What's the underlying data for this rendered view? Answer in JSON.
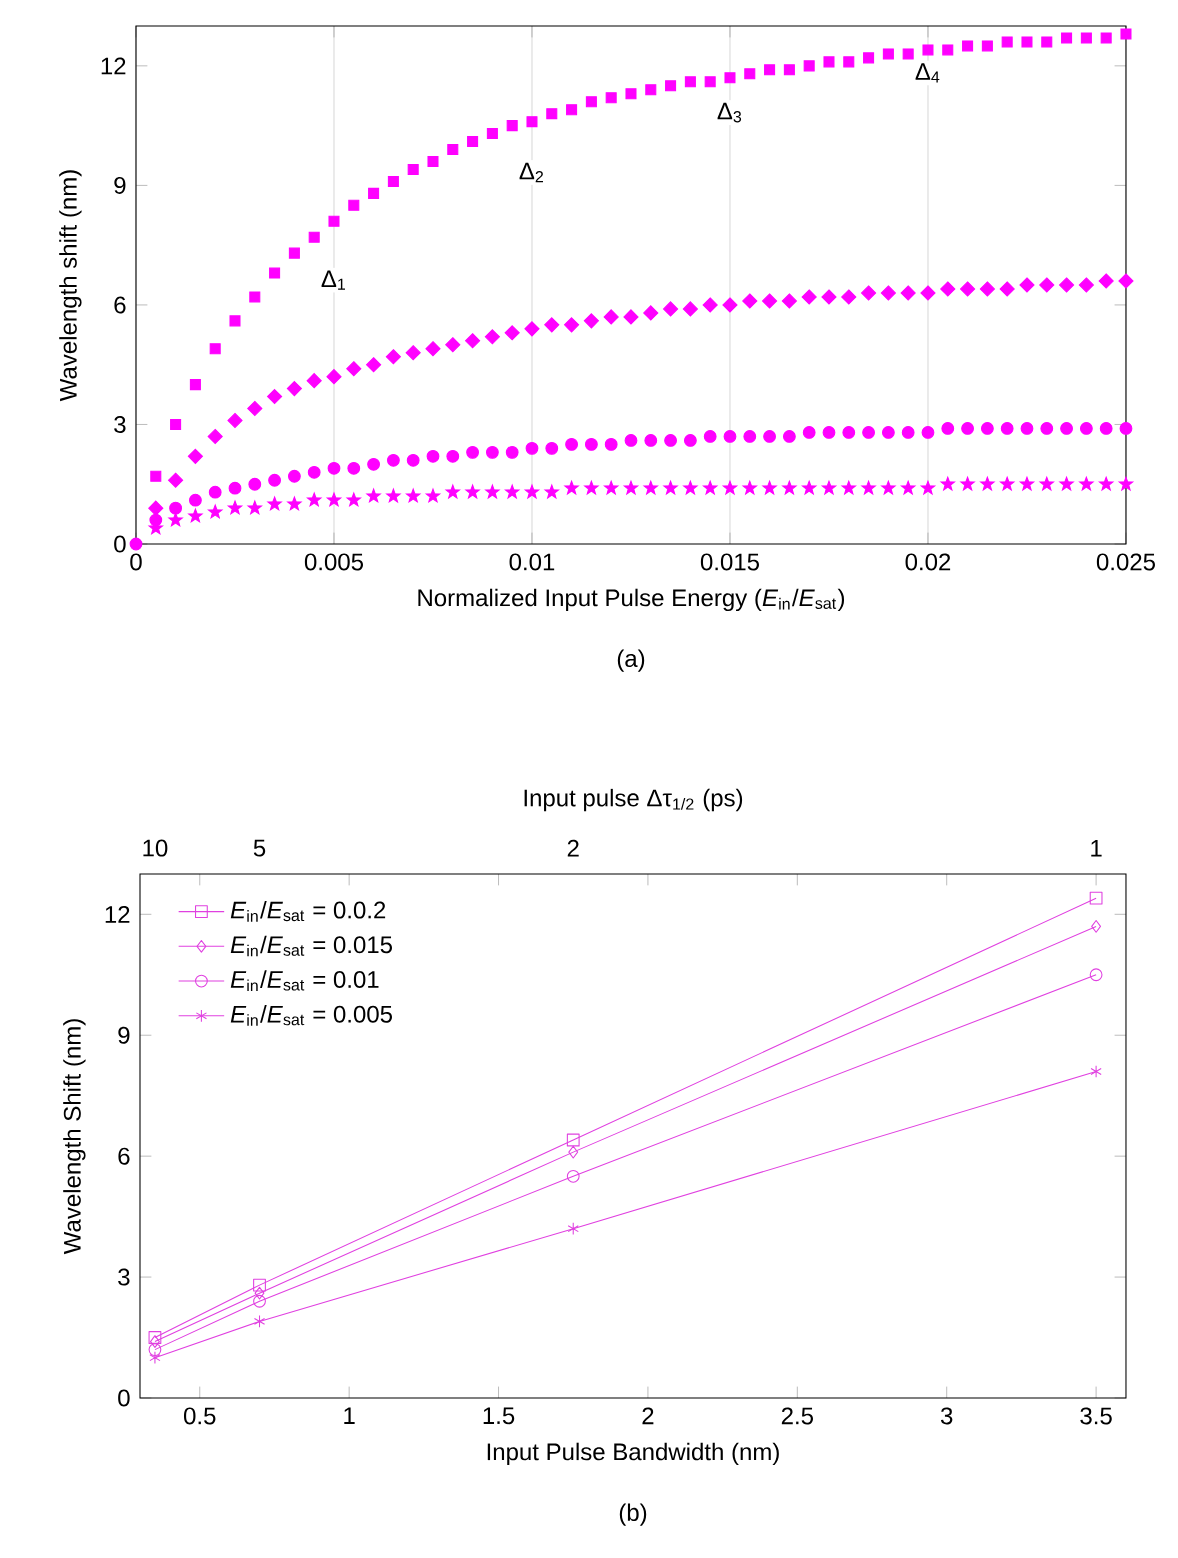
{
  "chart_data": [
    {
      "type": "scatter",
      "ylabel": "Wavelength shift (nm)",
      "xlabel": "Normalized Input Pulse Energy (*E*$_{in}$/*E*$_{sat}$)",
      "x": [
        0,
        0.0005,
        0.001,
        0.0015,
        0.002,
        0.0025,
        0.003,
        0.0035,
        0.004,
        0.0045,
        0.005,
        0.0055,
        0.006,
        0.0065,
        0.007,
        0.0075,
        0.008,
        0.0085,
        0.009,
        0.0095,
        0.01,
        0.0105,
        0.011,
        0.0115,
        0.012,
        0.0125,
        0.013,
        0.0135,
        0.014,
        0.0145,
        0.015,
        0.0155,
        0.016,
        0.0165,
        0.017,
        0.0175,
        0.018,
        0.0185,
        0.019,
        0.0195,
        0.02,
        0.0205,
        0.021,
        0.0215,
        0.022,
        0.0225,
        0.023,
        0.0235,
        0.024,
        0.0245,
        0.025
      ],
      "series": [
        {
          "color": "#ff00ff",
          "marker": "square",
          "values": [
            null,
            1.7,
            3.0,
            4.0,
            4.9,
            5.6,
            6.2,
            6.8,
            7.3,
            7.7,
            8.1,
            8.5,
            8.8,
            9.1,
            9.4,
            9.6,
            9.9,
            10.1,
            10.3,
            10.5,
            10.6,
            10.8,
            10.9,
            11.1,
            11.2,
            11.3,
            11.4,
            11.5,
            11.6,
            11.6,
            11.7,
            11.8,
            11.9,
            11.9,
            12.0,
            12.1,
            12.1,
            12.2,
            12.3,
            12.3,
            12.4,
            12.4,
            12.5,
            12.5,
            12.6,
            12.6,
            12.6,
            12.7,
            12.7,
            12.7,
            12.8
          ]
        },
        {
          "color": "#ff00ff",
          "marker": "diamond",
          "values": [
            null,
            0.9,
            1.6,
            2.2,
            2.7,
            3.1,
            3.4,
            3.7,
            3.9,
            4.1,
            4.2,
            4.4,
            4.5,
            4.7,
            4.8,
            4.9,
            5.0,
            5.1,
            5.2,
            5.3,
            5.4,
            5.5,
            5.5,
            5.6,
            5.7,
            5.7,
            5.8,
            5.9,
            5.9,
            6.0,
            6.0,
            6.1,
            6.1,
            6.1,
            6.2,
            6.2,
            6.2,
            6.3,
            6.3,
            6.3,
            6.3,
            6.4,
            6.4,
            6.4,
            6.4,
            6.5,
            6.5,
            6.5,
            6.5,
            6.6,
            6.6
          ]
        },
        {
          "color": "#ff00ff",
          "marker": "circle",
          "values": [
            0,
            0.6,
            0.9,
            1.1,
            1.3,
            1.4,
            1.5,
            1.6,
            1.7,
            1.8,
            1.9,
            1.9,
            2.0,
            2.1,
            2.1,
            2.2,
            2.2,
            2.3,
            2.3,
            2.3,
            2.4,
            2.4,
            2.5,
            2.5,
            2.5,
            2.6,
            2.6,
            2.6,
            2.6,
            2.7,
            2.7,
            2.7,
            2.7,
            2.7,
            2.8,
            2.8,
            2.8,
            2.8,
            2.8,
            2.8,
            2.8,
            2.9,
            2.9,
            2.9,
            2.9,
            2.9,
            2.9,
            2.9,
            2.9,
            2.9,
            2.9
          ]
        },
        {
          "color": "#ff00ff",
          "marker": "star",
          "values": [
            null,
            0.4,
            0.6,
            0.7,
            0.8,
            0.9,
            0.9,
            1.0,
            1.0,
            1.1,
            1.1,
            1.1,
            1.2,
            1.2,
            1.2,
            1.2,
            1.3,
            1.3,
            1.3,
            1.3,
            1.3,
            1.3,
            1.4,
            1.4,
            1.4,
            1.4,
            1.4,
            1.4,
            1.4,
            1.4,
            1.4,
            1.4,
            1.4,
            1.4,
            1.4,
            1.4,
            1.4,
            1.4,
            1.4,
            1.4,
            1.4,
            1.5,
            1.5,
            1.5,
            1.5,
            1.5,
            1.5,
            1.5,
            1.5,
            1.5,
            1.5
          ]
        }
      ],
      "xlim": [
        0,
        0.025
      ],
      "xticks": [
        0,
        0.005,
        0.01,
        0.015,
        0.02,
        0.025
      ],
      "ylim": [
        0,
        13
      ],
      "yticks": [
        0,
        3,
        6,
        9,
        12
      ],
      "grid": "x",
      "legend": false,
      "annotations": [
        "Δ$_{1}$",
        "Δ$_{2}$",
        "Δ$_{3}$",
        "Δ$_{4}$",
        "(a)"
      ]
    },
    {
      "type": "line",
      "xlabel": "Input Pulse Bandwidth (nm)",
      "ylabel": "Wavelength Shift (nm)",
      "x2label": "Input pulse Δτ$_{1/2}$ (ps)",
      "x": [
        0.35,
        0.7,
        1.75,
        3.5
      ],
      "series": [
        {
          "name": "*E*$_{in}$/*E*$_{sat}$ = 0.0.2",
          "color": "#e040e0",
          "marker": "square",
          "values": [
            1.5,
            2.8,
            6.4,
            12.4
          ]
        },
        {
          "name": "*E*$_{in}$/*E*$_{sat}$ = 0.015",
          "color": "#e040e0",
          "marker": "diamond",
          "values": [
            1.4,
            2.6,
            6.1,
            11.7
          ]
        },
        {
          "name": "*E*$_{in}$/*E*$_{sat}$ = 0.01",
          "color": "#e040e0",
          "marker": "circle",
          "values": [
            1.2,
            2.4,
            5.5,
            10.5
          ]
        },
        {
          "name": "*E*$_{in}$/*E*$_{sat}$ = 0.005",
          "color": "#e040e0",
          "marker": "cross",
          "values": [
            1.0,
            1.9,
            4.2,
            8.1
          ]
        }
      ],
      "xlim": [
        0.3,
        3.6
      ],
      "xticks": [
        0.5,
        1,
        1.5,
        2,
        2.5,
        3,
        3.5
      ],
      "ylim": [
        0,
        13
      ],
      "yticks": [
        0,
        3,
        6,
        9,
        12
      ],
      "legend": "top left",
      "line_style": "solid",
      "annotations": [
        "10",
        "5",
        "2",
        "1",
        "(b)"
      ]
    }
  ]
}
